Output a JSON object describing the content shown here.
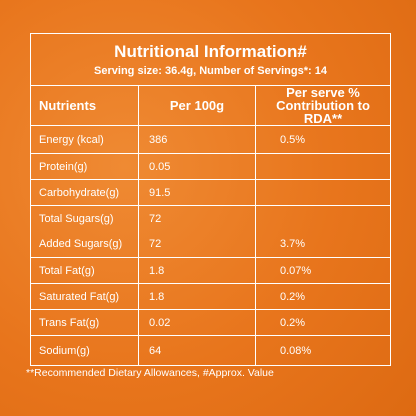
{
  "header": {
    "title": "Nutritional Information#",
    "serving": "Serving size: 36.4g, Number of Servings*: 14"
  },
  "table": {
    "columns": [
      "Nutrients",
      "Per 100g",
      "Per serve % Contribution to RDA**"
    ],
    "rows": [
      {
        "nutrient": "Energy (kcal)",
        "per_100g": "386",
        "rda": "0.5%"
      },
      {
        "nutrient": "Protein(g)",
        "per_100g": "0.05"
      },
      {
        "nutrient": "Carbohydrate(g)",
        "per_100g": "91.5"
      },
      {
        "nutrient": "Total Sugars(g)",
        "per_100g": "72"
      },
      {
        "nutrient": "Added Sugars(g)",
        "per_100g": "72",
        "rda": "3.7%"
      },
      {
        "nutrient": "Total Fat(g)",
        "per_100g": "1.8",
        "rda": "0.07%"
      },
      {
        "nutrient": "Saturated Fat(g)",
        "per_100g": "1.8",
        "rda": "0.2%"
      },
      {
        "nutrient": "Trans Fat(g)",
        "per_100g": "0.02",
        "rda": "0.2%"
      },
      {
        "nutrient": "Sodium(g)",
        "per_100g": "64",
        "rda": "0.08%"
      }
    ]
  },
  "footnote": "**Recommended Dietary Allowances, #Approx. Value"
}
